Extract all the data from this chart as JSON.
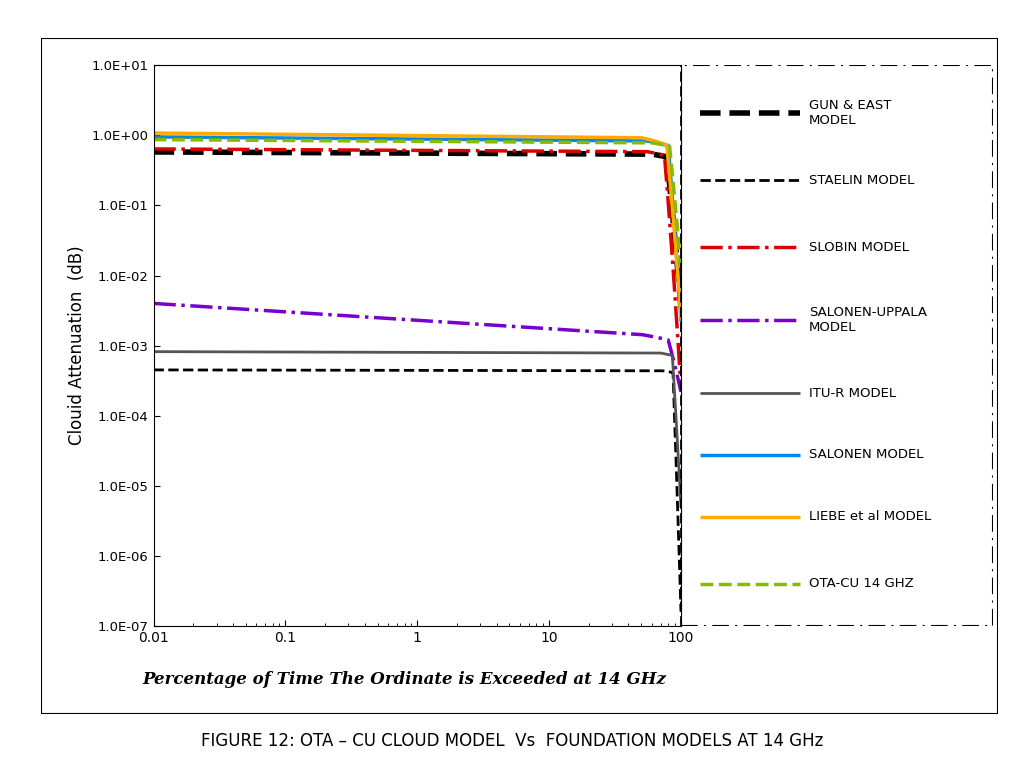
{
  "title": "FIGURE 12: OTA – CU CLOUD MODEL  Vs  FOUNDATION MODELS AT 14 GHz",
  "xlabel": "Percentage of Time The Ordinate is Exceeded at 14 GHz",
  "ylabel": "Clouid Attenuation  (dB)",
  "xlim": [
    0.01,
    100
  ],
  "ylim": [
    1e-07,
    10
  ],
  "ytick_labels": [
    "1.0E-07",
    "1.0E-06",
    "1.0E-05",
    "1.0E-04",
    "1.0E-03",
    "1.0E-02",
    "1.0E-01",
    "1.0E+00",
    "1.0E+01"
  ],
  "ytick_vals": [
    1e-07,
    1e-06,
    1e-05,
    0.0001,
    0.001,
    0.01,
    0.1,
    1.0,
    10.0
  ],
  "xtick_labels": [
    "0.01",
    "0.1",
    "1",
    "10",
    "100"
  ],
  "xtick_vals": [
    0.01,
    0.1,
    1.0,
    10.0,
    100.0
  ],
  "legend_items": [
    {
      "label": "GUN & EAST\nMODEL",
      "color": "#000000",
      "ls": "--",
      "lw": 4.0
    },
    {
      "label": "STAELIN MODEL",
      "color": "#000000",
      "ls": "--",
      "lw": 2.0
    },
    {
      "label": "SLOBIN MODEL",
      "color": "#dd0000",
      "ls": "-.",
      "lw": 2.5
    },
    {
      "label": "SALONEN-UPPALA\nMODEL",
      "color": "#7700cc",
      "ls": "-.",
      "lw": 2.5
    },
    {
      "label": "ITU-R MODEL",
      "color": "#555555",
      "ls": "-",
      "lw": 2.0
    },
    {
      "label": "SALONEN MODEL",
      "color": "#0088ee",
      "ls": "-",
      "lw": 2.5
    },
    {
      "label": "LIEBE et al MODEL",
      "color": "#ffaa00",
      "ls": "-",
      "lw": 2.5
    },
    {
      "label": "OTA-CU 14 GHZ",
      "color": "#88bb00",
      "ls": "--",
      "lw": 2.5
    }
  ],
  "background_color": "#ffffff",
  "figure_caption_fontsize": 12
}
